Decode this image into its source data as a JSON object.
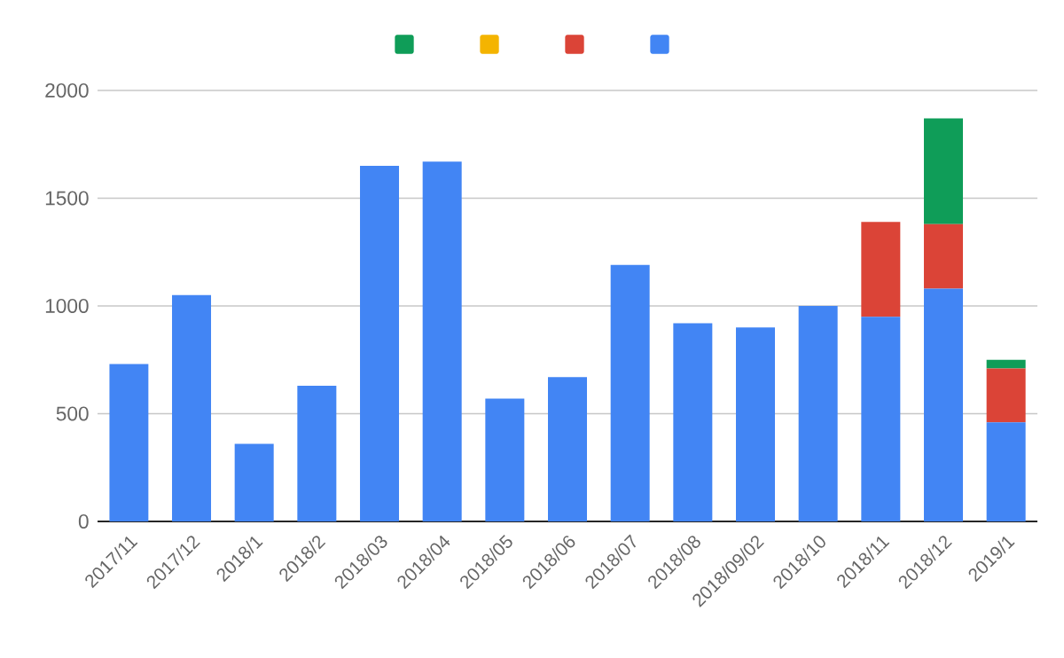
{
  "chart_data": {
    "type": "bar",
    "stacked": true,
    "grid": "y",
    "categories": [
      "2017/11",
      "2017/12",
      "2018/1",
      "2018/2",
      "2018/03",
      "2018/04",
      "2018/05",
      "2018/06",
      "2018/07",
      "2018/08",
      "2018/09/02",
      "2018/10",
      "2018/11",
      "2018/12",
      "2019/1"
    ],
    "series": [
      {
        "color": "#4285f4",
        "values": [
          730,
          1050,
          360,
          630,
          1650,
          1670,
          570,
          670,
          1190,
          920,
          900,
          1000,
          950,
          1080,
          460
        ]
      },
      {
        "color": "#db4437",
        "values": [
          0,
          0,
          0,
          0,
          0,
          0,
          0,
          0,
          0,
          0,
          0,
          0,
          440,
          300,
          250
        ]
      },
      {
        "color": "#f4b400",
        "values": [
          0,
          0,
          0,
          0,
          0,
          0,
          0,
          0,
          0,
          0,
          0,
          0,
          0,
          0,
          0
        ]
      },
      {
        "color": "#0f9d58",
        "values": [
          0,
          0,
          0,
          0,
          0,
          0,
          0,
          0,
          0,
          0,
          0,
          0,
          0,
          490,
          40
        ]
      }
    ],
    "ylim": [
      0,
      2000
    ],
    "yticks": [
      0,
      500,
      1000,
      1500,
      2000
    ]
  }
}
